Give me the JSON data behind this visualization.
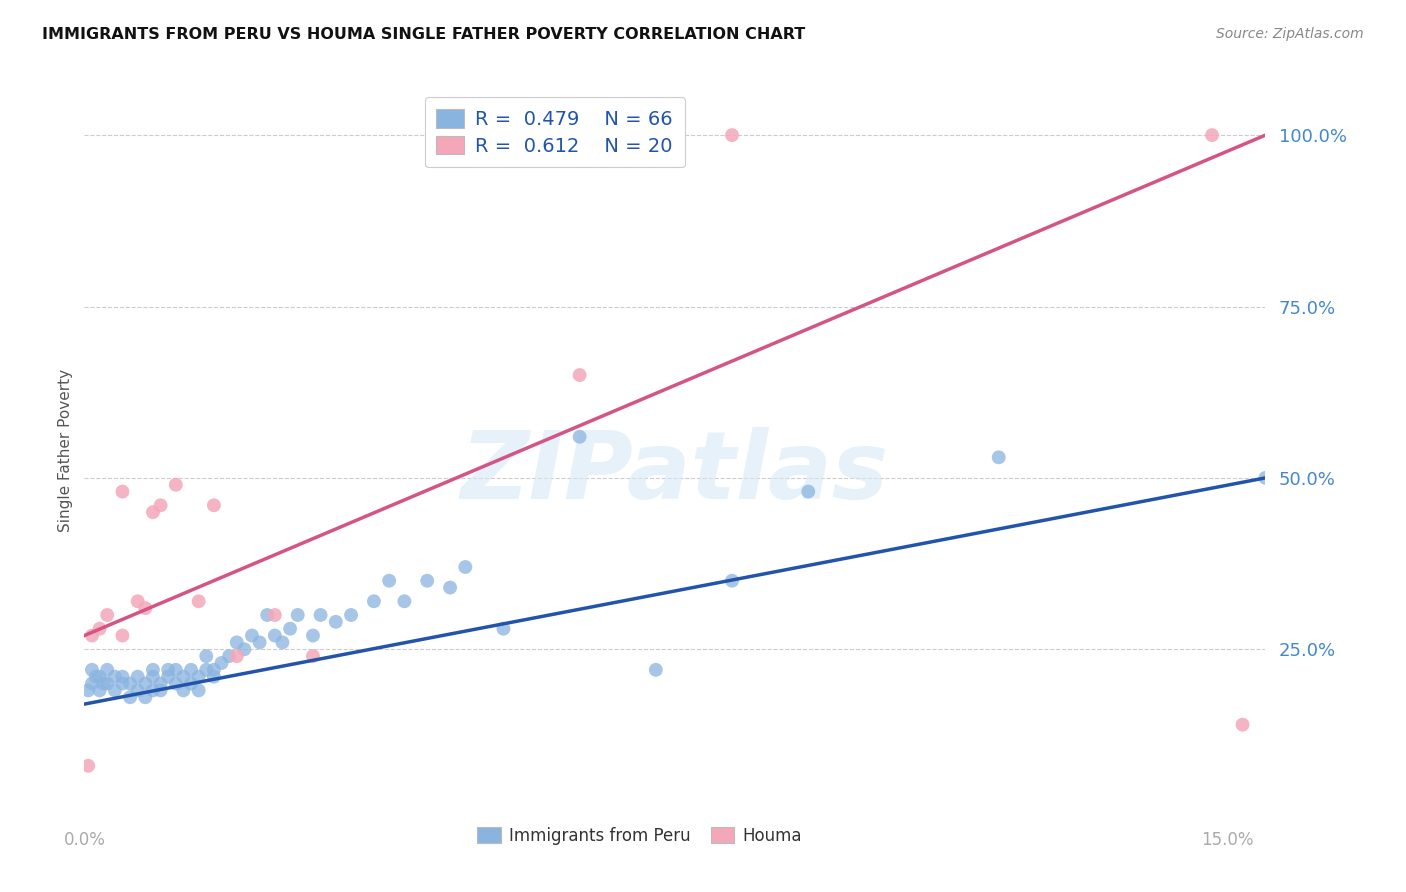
{
  "title": "IMMIGRANTS FROM PERU VS HOUMA SINGLE FATHER POVERTY CORRELATION CHART",
  "source": "Source: ZipAtlas.com",
  "ylabel": "Single Father Poverty",
  "ylim": [
    0.0,
    1.08
  ],
  "xlim": [
    0.0,
    0.155
  ],
  "blue_R": 0.479,
  "blue_N": 66,
  "pink_R": 0.612,
  "pink_N": 20,
  "blue_color": "#8ab4e0",
  "pink_color": "#f4a7b9",
  "blue_line_color": "#2255aa",
  "pink_line_color": "#d45585",
  "watermark_text": "ZIPatlas",
  "legend_R_N_color": "#2255aa",
  "ytick_color": "#4488cc",
  "xtick_color": "#aaaaaa",
  "blue_scatter_x": [
    0.0005,
    0.001,
    0.0015,
    0.001,
    0.002,
    0.002,
    0.003,
    0.003,
    0.0025,
    0.004,
    0.004,
    0.005,
    0.005,
    0.006,
    0.006,
    0.007,
    0.007,
    0.008,
    0.008,
    0.009,
    0.009,
    0.009,
    0.01,
    0.01,
    0.011,
    0.011,
    0.012,
    0.012,
    0.013,
    0.013,
    0.014,
    0.014,
    0.015,
    0.015,
    0.016,
    0.016,
    0.017,
    0.017,
    0.018,
    0.019,
    0.02,
    0.021,
    0.022,
    0.023,
    0.024,
    0.025,
    0.026,
    0.027,
    0.028,
    0.03,
    0.031,
    0.033,
    0.035,
    0.038,
    0.04,
    0.042,
    0.045,
    0.048,
    0.05,
    0.055,
    0.065,
    0.075,
    0.085,
    0.095,
    0.12,
    0.155
  ],
  "blue_scatter_y": [
    0.19,
    0.2,
    0.21,
    0.22,
    0.19,
    0.21,
    0.2,
    0.22,
    0.2,
    0.19,
    0.21,
    0.2,
    0.21,
    0.18,
    0.2,
    0.19,
    0.21,
    0.18,
    0.2,
    0.21,
    0.19,
    0.22,
    0.2,
    0.19,
    0.21,
    0.22,
    0.2,
    0.22,
    0.19,
    0.21,
    0.2,
    0.22,
    0.19,
    0.21,
    0.22,
    0.24,
    0.22,
    0.21,
    0.23,
    0.24,
    0.26,
    0.25,
    0.27,
    0.26,
    0.3,
    0.27,
    0.26,
    0.28,
    0.3,
    0.27,
    0.3,
    0.29,
    0.3,
    0.32,
    0.35,
    0.32,
    0.35,
    0.34,
    0.37,
    0.28,
    0.56,
    0.22,
    0.35,
    0.48,
    0.53,
    0.5
  ],
  "pink_scatter_x": [
    0.0005,
    0.001,
    0.002,
    0.003,
    0.005,
    0.005,
    0.007,
    0.008,
    0.009,
    0.01,
    0.012,
    0.015,
    0.017,
    0.02,
    0.025,
    0.03,
    0.065,
    0.085,
    0.148,
    0.152
  ],
  "pink_scatter_y": [
    0.08,
    0.27,
    0.28,
    0.3,
    0.27,
    0.48,
    0.32,
    0.31,
    0.45,
    0.46,
    0.49,
    0.32,
    0.46,
    0.24,
    0.3,
    0.24,
    0.65,
    1.0,
    1.0,
    0.14
  ],
  "blue_line_x0": 0.0,
  "blue_line_y0": 0.17,
  "blue_line_x1": 0.155,
  "blue_line_y1": 0.5,
  "pink_line_x0": 0.0,
  "pink_line_y0": 0.27,
  "pink_line_x1": 0.155,
  "pink_line_y1": 1.0
}
